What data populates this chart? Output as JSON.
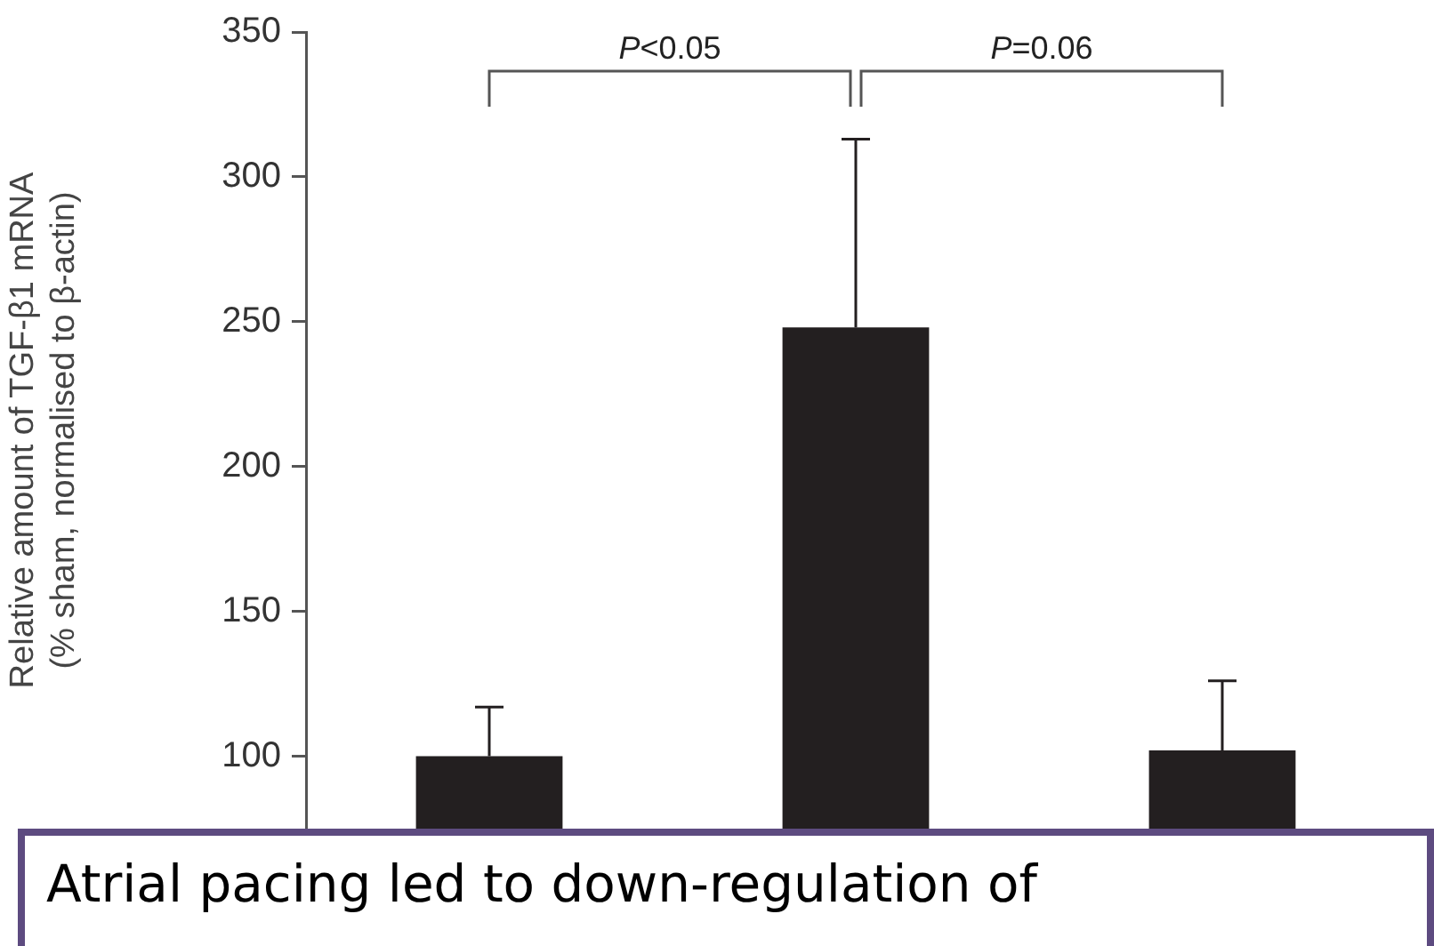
{
  "chart_data": {
    "type": "bar",
    "ylabel": "Relative amount of TGF-β1 mRNA\n(% sham, normalised to β-actin)",
    "categories": [
      null,
      null,
      null
    ],
    "values": [
      100,
      248,
      102
    ],
    "color": "#231f20",
    "errors": [
      [
        100,
        117
      ],
      [
        248,
        313
      ],
      [
        102,
        126
      ]
    ],
    "ylim": [
      75,
      350
    ],
    "yticks": [
      100,
      150,
      200,
      250,
      300,
      350
    ],
    "grid": false,
    "annotations": [
      "P<0.05",
      "P=0.06",
      "Atrial pacing led to down-regulation of"
    ]
  }
}
